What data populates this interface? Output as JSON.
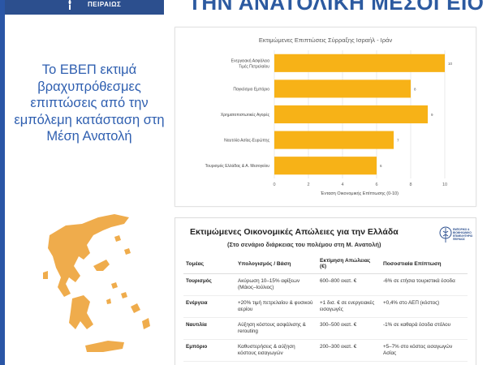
{
  "header": {
    "org_short": "ΠΕΙΡΑΙΩΣ",
    "headline": "ΤΗΝ ΑΝΑΤΟΛΙΚΗ ΜΕΣΟΓΕΙΟ"
  },
  "left_text": "Το ΕΒΕΠ εκτιμά βραχυπρόθεσμες επιπτώσεις από την εμπόλεμη κατάσταση στη Μέση Ανατολή",
  "colors": {
    "accent": "#2c5aa0",
    "bar": "#f7b217",
    "map": "#efac4c"
  },
  "chart_data": {
    "type": "bar",
    "orientation": "horizontal",
    "title": "Εκτιμώμενες Επιπτώσεις Σύρραξης Ισραήλ - Ιράν",
    "xlabel": "Ένταση Οικονομικής Επίπτωσης (0-10)",
    "ylabel": "",
    "xlim": [
      0,
      10
    ],
    "xticks": [
      0,
      2,
      4,
      6,
      8,
      10
    ],
    "grid": true,
    "categories": [
      [
        "Ενεργειακή Ασφάλεια",
        "Τιμές Πετρελαίου"
      ],
      [
        "Παγκόσμιο Εμπόριο"
      ],
      [
        "Χρηματοπιστωτικές Αγορές"
      ],
      [
        "Ναυτιλία Ασίας-Ευρώπης"
      ],
      [
        "Τουρισμός Ελλάδας & Α. Μεσογείου"
      ]
    ],
    "values": [
      10,
      8,
      9,
      7,
      6
    ]
  },
  "table": {
    "title": "Εκτιμώμενες Οικονομικές Απώλειες για την Ελλάδα",
    "subtitle": "(Στο σενάριο διάρκειας του πολέμου στη Μ. Ανατολή)",
    "logo_label": "ΕΜΠΟΡΙΚΟ & ΒΙΟΜΗΧΑΝΙΚΟ ΕΠΙΜΕΛΗΤΗΡΙΟ ΠΕΙΡΑΙΩΣ",
    "headers": [
      "Τομέας",
      "Υπολογισμός / Βάση",
      "Εκτίμηση Απώλειας (€)",
      "Ποσοστιαία Επίπτωση"
    ],
    "rows": [
      [
        "Τουρισμός",
        "Ακύρωση 10–15% αφίξεων (Μάιος–Ιούλιος)",
        "600–800 εκατ. €",
        "-6% σε ετήσια τουριστικά έσοδα"
      ],
      [
        "Ενέργεια",
        "+20% τιμή πετρελαίου & φυσικού αερίου",
        "+1 δισ. € σε ενεργειακές εισαγωγές",
        "+0,4% στο ΑΕΠ (κόστος)"
      ],
      [
        "Ναυτιλία",
        "Αύξηση κόστους ασφάλισης & rerouting",
        "300–500 εκατ. €",
        "-1% σε καθαρά έσοδα στόλου"
      ],
      [
        "Εμπόριο",
        "Καθυστερήσεις & αύξηση κόστους εισαγωγών",
        "200–300 εκατ. €",
        "+5–7% στο κόστος εισαγωγών Ασίας"
      ]
    ]
  }
}
